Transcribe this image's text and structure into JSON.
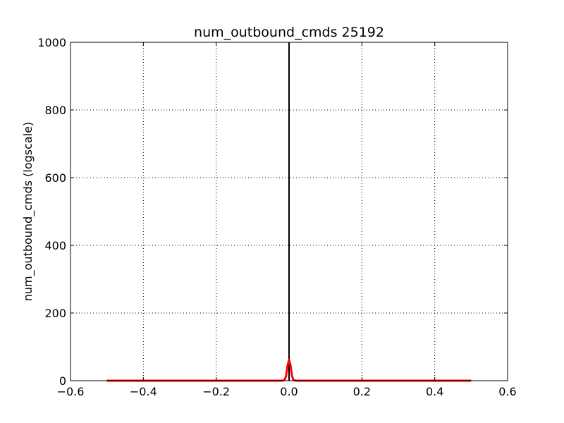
{
  "chart_data": {
    "type": "line",
    "title": "num_outbound_cmds 25192",
    "xlabel": "",
    "ylabel": "num_outbound_cmds (logscale)",
    "xlim": [
      -0.6,
      0.6
    ],
    "ylim": [
      0,
      1000
    ],
    "grid": true,
    "x_ticks": [
      -0.6,
      -0.4,
      -0.2,
      0.0,
      0.2,
      0.4,
      0.6
    ],
    "x_tick_labels": [
      "−0.6",
      "−0.4",
      "−0.2",
      "0.0",
      "0.2",
      "0.4",
      "0.6"
    ],
    "y_ticks": [
      0,
      200,
      400,
      600,
      800,
      1000
    ],
    "y_tick_labels": [
      "0",
      "200",
      "400",
      "600",
      "800",
      "1000"
    ],
    "series": [
      {
        "kind": "bar",
        "color": "#000000",
        "x": [
          0.0
        ],
        "values": [
          1000
        ]
      },
      {
        "kind": "density",
        "color": "#ff0000",
        "x": [
          -0.5,
          -0.02,
          -0.012,
          -0.008,
          -0.004,
          0.0,
          0.004,
          0.008,
          0.012,
          0.02,
          0.5
        ],
        "values": [
          0,
          0,
          2,
          15,
          45,
          62,
          45,
          15,
          2,
          0,
          0
        ]
      }
    ]
  }
}
